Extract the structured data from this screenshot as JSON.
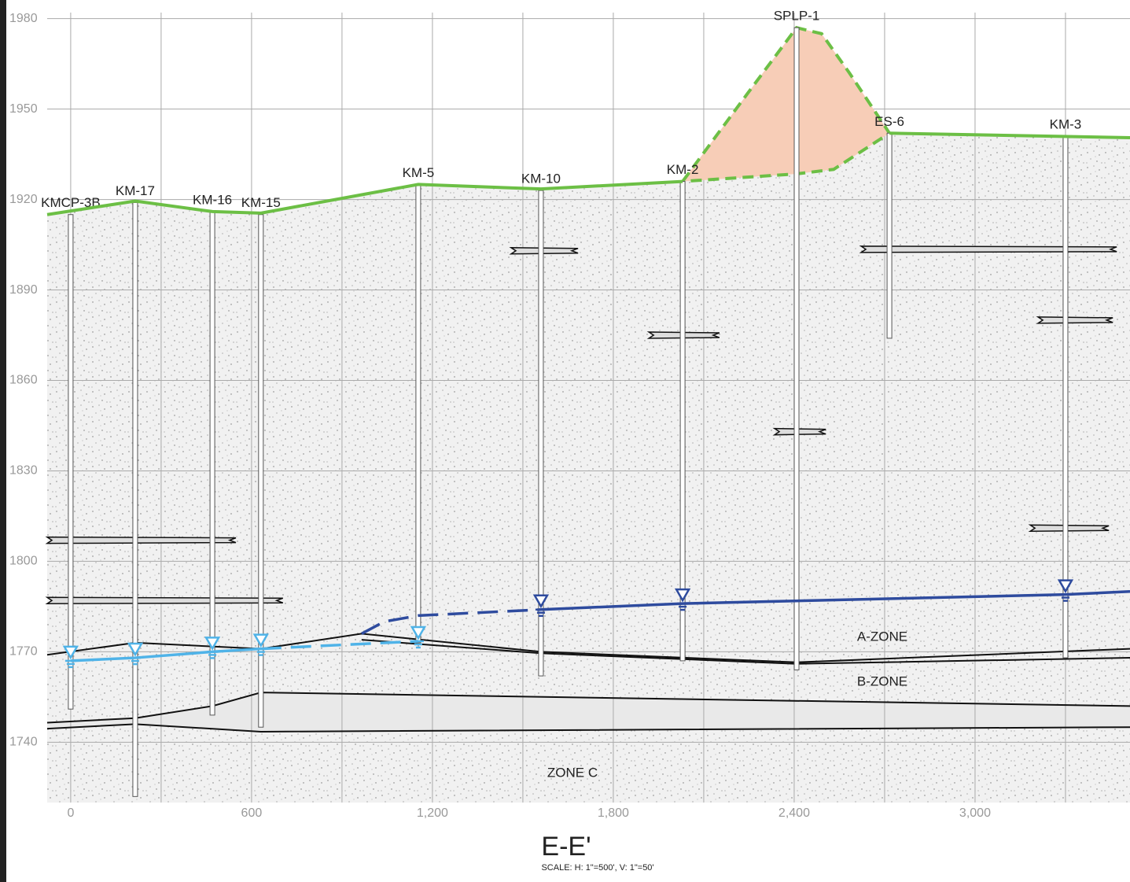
{
  "chart_data": {
    "type": "cross-section",
    "title": "E-E'",
    "subtitle": "SCALE: H: 1\"=500', V: 1\"=50'",
    "xlim": [
      -78,
      3514
    ],
    "ylim": [
      1720,
      1982
    ],
    "xticks": [
      0,
      600,
      {
        "value": 1200,
        "label": "1,200"
      },
      {
        "value": 1800,
        "label": "1,800"
      },
      {
        "value": 2400,
        "label": "2,400"
      },
      {
        "value": 3000,
        "label": "3,000"
      }
    ],
    "yticks": [
      1740,
      1770,
      1800,
      1830,
      1860,
      1890,
      1920,
      1950,
      1980
    ],
    "grid": true,
    "borings": [
      {
        "name": "KMCP-3B",
        "x": 0,
        "top": 1915,
        "bottom": 1751
      },
      {
        "name": "KM-17",
        "x": 214,
        "top": 1919,
        "bottom": 1722
      },
      {
        "name": "KM-16",
        "x": 470,
        "top": 1916,
        "bottom": 1749
      },
      {
        "name": "KM-15",
        "x": 631,
        "top": 1915,
        "bottom": 1745
      },
      {
        "name": "KM-5",
        "x": 1153,
        "top": 1925,
        "bottom": 1773
      },
      {
        "name": "KM-10",
        "x": 1560,
        "top": 1923,
        "bottom": 1762
      },
      {
        "name": "KM-2",
        "x": 2030,
        "top": 1926,
        "bottom": 1767
      },
      {
        "name": "SPLP-1",
        "x": 2408,
        "top": 1977,
        "bottom": 1764
      },
      {
        "name": "ES-6",
        "x": 2716,
        "top": 1942,
        "bottom": 1874
      },
      {
        "name": "KM-3",
        "x": 3300,
        "top": 1941,
        "bottom": 1768
      }
    ],
    "ground_surface": {
      "color": "#6cbf45",
      "x": [
        -78,
        214,
        470,
        631,
        1153,
        1560,
        2030,
        null,
        2716,
        3514
      ],
      "values": [
        1915,
        1919.5,
        1916,
        1915.5,
        1925,
        1923.5,
        1926,
        null,
        1942,
        1940.5
      ]
    },
    "stockpile": {
      "color": "#f7cdb7",
      "line_color": "#6cbf45",
      "x": [
        2030,
        2244,
        2408,
        2491,
        2583,
        2716,
        2531,
        2408,
        2030
      ],
      "values": [
        1926,
        1955,
        1977,
        1975,
        1962,
        1942,
        1930,
        1928.5,
        1926
      ]
    },
    "water_levels": [
      {
        "color": "#4fb3e8",
        "style": "solid",
        "x": [
          0,
          214,
          470,
          631
        ],
        "values": [
          1767,
          1768,
          1770,
          1771
        ]
      },
      {
        "color": "#4fb3e8",
        "style": "dashed",
        "x": [
          631,
          1153
        ],
        "values": [
          1771,
          1773.5
        ]
      },
      {
        "color": "#2e4b9e",
        "style": "dashed",
        "x": [
          965,
          1040,
          1153,
          1560
        ],
        "values": [
          1776,
          1780,
          1782,
          1784
        ]
      },
      {
        "color": "#2e4b9e",
        "style": "solid",
        "x": [
          1560,
          2030,
          3300,
          3514
        ],
        "values": [
          1784,
          1786,
          1789,
          1790
        ]
      }
    ],
    "boundaries": [
      {
        "x": [
          -78,
          214,
          631,
          965,
          1560,
          2408,
          3514
        ],
        "values": [
          1769,
          1773,
          1771,
          1776,
          1770,
          1766.5,
          1771
        ]
      },
      {
        "x": [
          965,
          1560,
          2408,
          3514
        ],
        "values": [
          1774,
          1769.5,
          1766,
          1768
        ]
      },
      {
        "x": [
          -78,
          214,
          470,
          631,
          3514
        ],
        "values": [
          1746.5,
          1748,
          1752,
          1756.5,
          1752
        ]
      },
      {
        "x": [
          -78,
          214,
          631,
          3514
        ],
        "values": [
          1744.5,
          1746,
          1743.5,
          1745
        ]
      }
    ],
    "lenses": [
      {
        "x": [
          1461,
          1683
        ],
        "elevation": 1903
      },
      {
        "x": [
          2622,
          3470
        ],
        "elevation": 1903.5
      },
      {
        "x": [
          1918,
          2152
        ],
        "elevation": 1875
      },
      {
        "x": [
          3209,
          3457
        ],
        "elevation": 1880
      },
      {
        "x": [
          2335,
          2505
        ],
        "elevation": 1843
      },
      {
        "x": [
          3183,
          3444
        ],
        "elevation": 1811
      },
      {
        "x": [
          -78,
          548
        ],
        "elevation": 1807
      },
      {
        "x": [
          -78,
          704
        ],
        "elevation": 1787
      }
    ],
    "zones": [
      "A-ZONE",
      "B-ZONE",
      "ZONE C"
    ]
  }
}
